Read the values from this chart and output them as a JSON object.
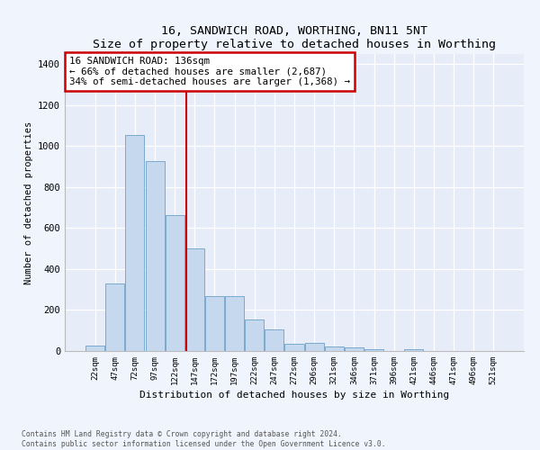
{
  "title": "16, SANDWICH ROAD, WORTHING, BN11 5NT",
  "subtitle": "Size of property relative to detached houses in Worthing",
  "xlabel": "Distribution of detached houses by size in Worthing",
  "ylabel": "Number of detached properties",
  "categories": [
    "22sqm",
    "47sqm",
    "72sqm",
    "97sqm",
    "122sqm",
    "147sqm",
    "172sqm",
    "197sqm",
    "222sqm",
    "247sqm",
    "272sqm",
    "296sqm",
    "321sqm",
    "346sqm",
    "371sqm",
    "396sqm",
    "421sqm",
    "446sqm",
    "471sqm",
    "496sqm",
    "521sqm"
  ],
  "values": [
    25,
    330,
    1055,
    925,
    665,
    500,
    270,
    270,
    155,
    105,
    35,
    40,
    20,
    18,
    10,
    0,
    10,
    0,
    0,
    0,
    0
  ],
  "bar_color": "#c5d8ee",
  "bar_edge_color": "#7aaace",
  "vline_color": "#cc0000",
  "vline_x": 4.56,
  "annotation_text": "16 SANDWICH ROAD: 136sqm\n← 66% of detached houses are smaller (2,687)\n34% of semi-detached houses are larger (1,368) →",
  "bg_color": "#f0f4fc",
  "plot_bg_color": "#e6ecf8",
  "footer": "Contains HM Land Registry data © Crown copyright and database right 2024.\nContains public sector information licensed under the Open Government Licence v3.0.",
  "ylim": [
    0,
    1450
  ],
  "yticks": [
    0,
    200,
    400,
    600,
    800,
    1000,
    1200,
    1400
  ]
}
